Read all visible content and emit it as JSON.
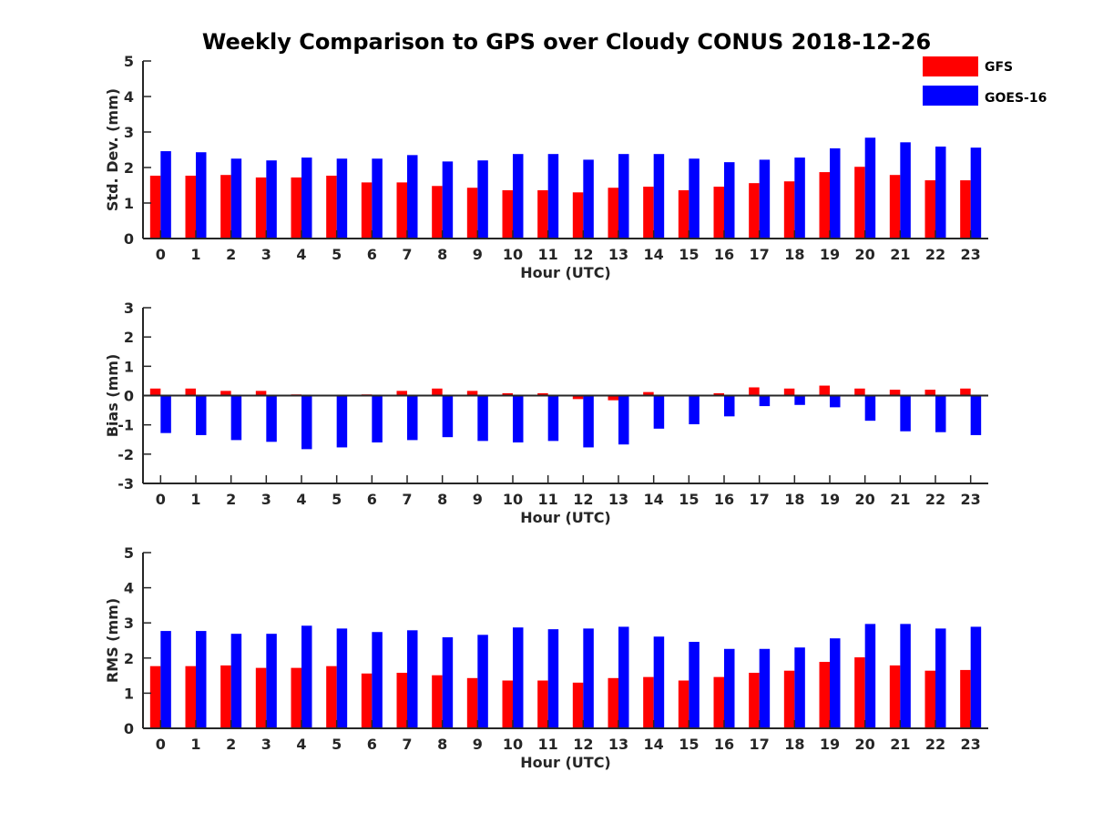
{
  "chart_data": {
    "type": "bar",
    "title": "Weekly Comparison to GPS over Cloudy CONUS 2018-12-26",
    "categories": [
      "0",
      "1",
      "2",
      "3",
      "4",
      "5",
      "6",
      "7",
      "8",
      "9",
      "10",
      "11",
      "12",
      "13",
      "14",
      "15",
      "16",
      "17",
      "18",
      "19",
      "20",
      "21",
      "22",
      "23"
    ],
    "legend": {
      "placement": "top-right",
      "entries": [
        {
          "name": "GFS",
          "color": "#ff0000"
        },
        {
          "name": "GOES-16",
          "color": "#0000ff"
        }
      ]
    },
    "panels": [
      {
        "id": "std",
        "xlabel": "Hour (UTC)",
        "ylabel": "Std. Dev. (mm)",
        "ylim": [
          0,
          5
        ],
        "yticks": [
          0,
          1,
          2,
          3,
          4,
          5
        ],
        "series": [
          {
            "name": "GFS",
            "color": "#ff0000",
            "values": [
              1.77,
              1.77,
              1.79,
              1.72,
              1.72,
              1.77,
              1.58,
              1.58,
              1.48,
              1.43,
              1.36,
              1.36,
              1.3,
              1.43,
              1.46,
              1.36,
              1.46,
              1.56,
              1.61,
              1.87,
              2.02,
              1.79,
              1.64,
              1.64
            ]
          },
          {
            "name": "GOES-16",
            "color": "#0000ff",
            "values": [
              2.46,
              2.43,
              2.25,
              2.2,
              2.28,
              2.25,
              2.25,
              2.35,
              2.17,
              2.2,
              2.38,
              2.38,
              2.22,
              2.38,
              2.38,
              2.25,
              2.15,
              2.22,
              2.28,
              2.54,
              2.84,
              2.71,
              2.59,
              2.56
            ]
          }
        ]
      },
      {
        "id": "bias",
        "xlabel": "Hour (UTC)",
        "ylabel": "Bias (mm)",
        "ylim": [
          -3,
          3
        ],
        "yticks": [
          -3,
          -2,
          -1,
          0,
          1,
          2,
          3
        ],
        "series": [
          {
            "name": "GFS",
            "color": "#ff0000",
            "values": [
              0.24,
              0.24,
              0.16,
              0.16,
              0.04,
              0.0,
              0.04,
              0.16,
              0.24,
              0.16,
              0.08,
              0.08,
              -0.12,
              -0.16,
              0.12,
              0.0,
              0.08,
              0.28,
              0.24,
              0.34,
              0.24,
              0.2,
              0.2,
              0.24
            ]
          },
          {
            "name": "GOES-16",
            "color": "#0000ff",
            "values": [
              -1.28,
              -1.35,
              -1.52,
              -1.58,
              -1.83,
              -1.77,
              -1.6,
              -1.52,
              -1.42,
              -1.55,
              -1.6,
              -1.55,
              -1.77,
              -1.67,
              -1.13,
              -0.98,
              -0.71,
              -0.36,
              -0.32,
              -0.4,
              -0.86,
              -1.22,
              -1.25,
              -1.35
            ]
          }
        ]
      },
      {
        "id": "rms",
        "xlabel": "Hour (UTC)",
        "ylabel": "RMS (mm)",
        "ylim": [
          0,
          5
        ],
        "yticks": [
          0,
          1,
          2,
          3,
          4,
          5
        ],
        "series": [
          {
            "name": "GFS",
            "color": "#ff0000",
            "values": [
              1.77,
              1.77,
              1.79,
              1.72,
              1.72,
              1.77,
              1.56,
              1.58,
              1.51,
              1.43,
              1.36,
              1.36,
              1.3,
              1.43,
              1.46,
              1.36,
              1.46,
              1.58,
              1.64,
              1.89,
              2.02,
              1.79,
              1.64,
              1.66
            ]
          },
          {
            "name": "GOES-16",
            "color": "#0000ff",
            "values": [
              2.77,
              2.77,
              2.69,
              2.69,
              2.92,
              2.84,
              2.74,
              2.79,
              2.59,
              2.66,
              2.87,
              2.82,
              2.84,
              2.89,
              2.61,
              2.46,
              2.26,
              2.26,
              2.3,
              2.56,
              2.97,
              2.97,
              2.84,
              2.89
            ]
          }
        ]
      }
    ]
  }
}
